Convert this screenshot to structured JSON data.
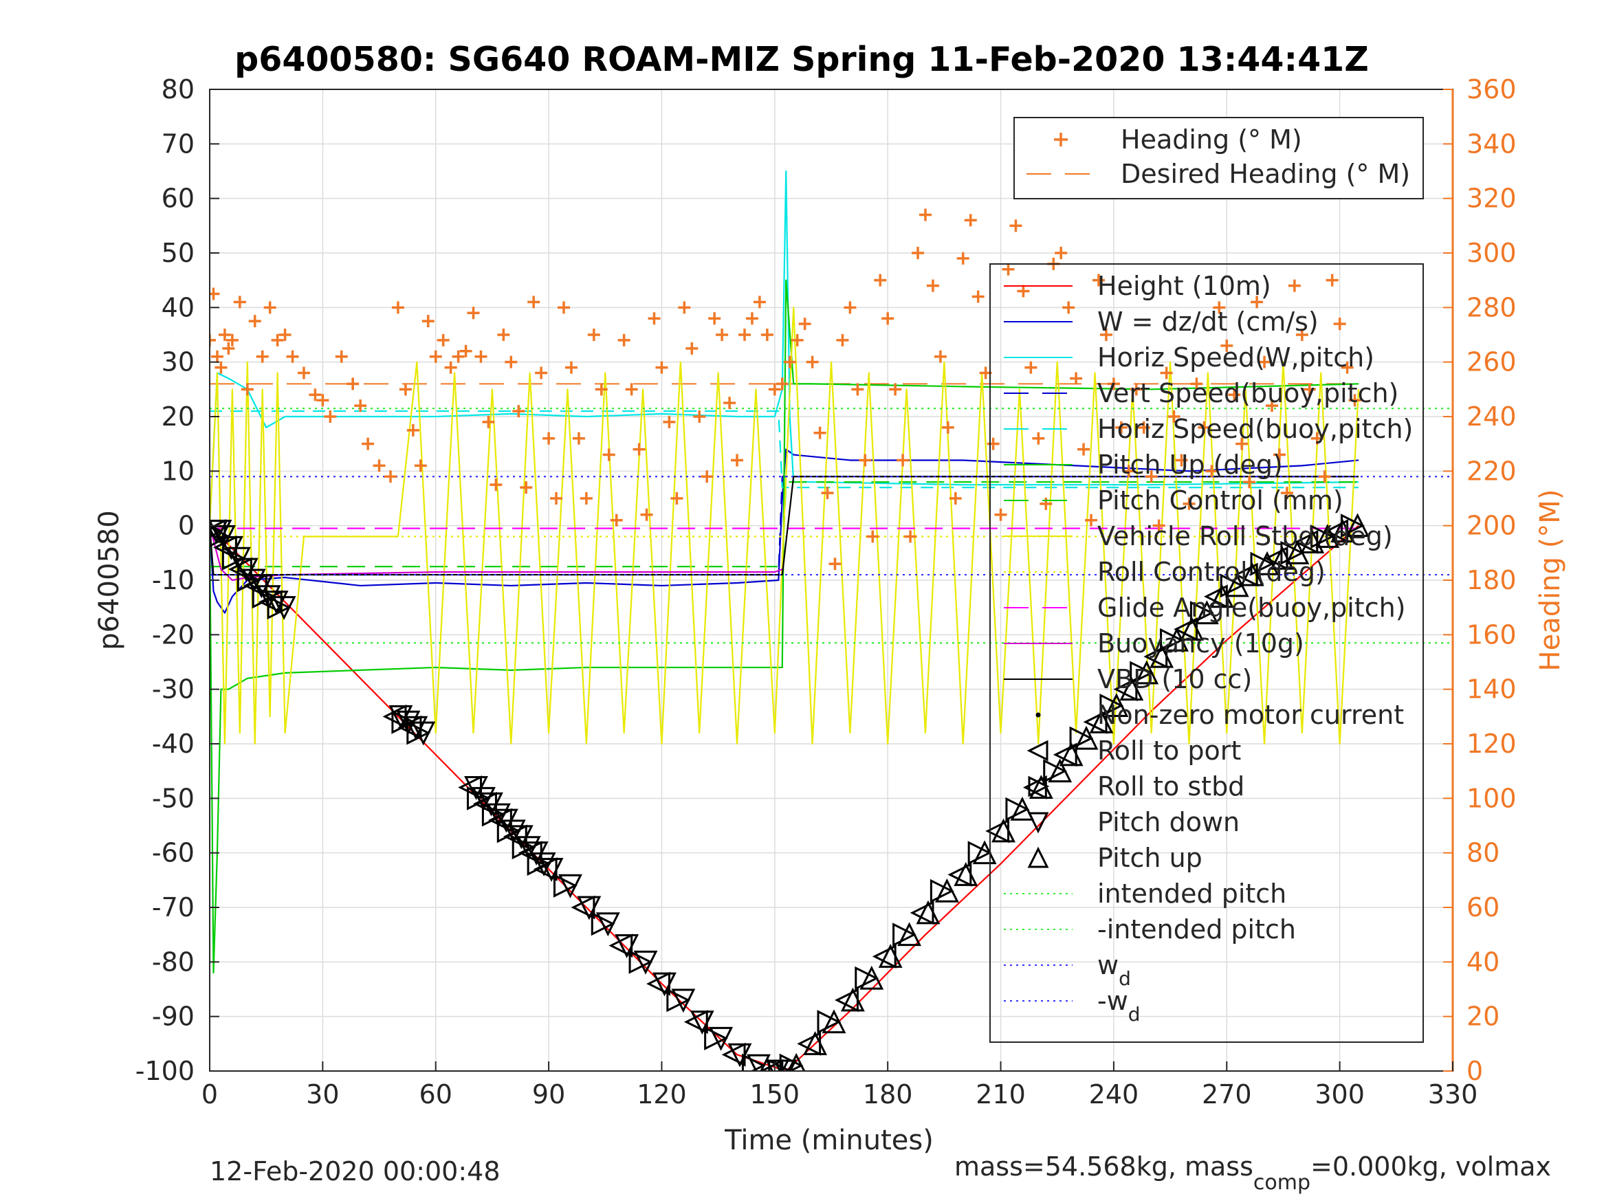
{
  "chart_data": {
    "type": "line",
    "title": "p6400580: SG640 ROAM-MIZ Spring 11-Feb-2020 13:44:41Z",
    "xlabel": "Time (minutes)",
    "ylabel": "p6400580",
    "y2label": "Heading (°M)",
    "xlim": [
      0,
      330
    ],
    "ylim": [
      -100,
      80
    ],
    "y2lim": [
      0,
      360
    ],
    "xticks": [
      "0",
      "30",
      "60",
      "90",
      "120",
      "150",
      "180",
      "210",
      "240",
      "270",
      "300",
      "330"
    ],
    "yticks": [
      "80",
      "70",
      "60",
      "50",
      "40",
      "30",
      "20",
      "10",
      "0",
      "-10",
      "-20",
      "-30",
      "-40",
      "-50",
      "-60",
      "-70",
      "-80",
      "-90",
      "-100"
    ],
    "y2ticks": [
      "360",
      "340",
      "320",
      "300",
      "280",
      "260",
      "240",
      "220",
      "200",
      "180",
      "160",
      "140",
      "120",
      "100",
      "80",
      "60",
      "40",
      "20",
      "0"
    ],
    "grid": true,
    "legend_upper": [
      {
        "label": "Heading (° M)",
        "color": "#f07826",
        "style": "plus"
      },
      {
        "label": "Desired Heading (° M)",
        "color": "#f07826",
        "style": "dashed"
      }
    ],
    "legend_lower": [
      {
        "label": "Height (10m)",
        "color": "#ff0000",
        "style": "solid"
      },
      {
        "label": "W = dz/dt (cm/s)",
        "color": "#0000d0",
        "style": "solid"
      },
      {
        "label": "Horiz Speed(W,pitch)",
        "color": "#00e5e5",
        "style": "solid"
      },
      {
        "label": "Vert Speed(buoy,pitch)",
        "color": "#0000d0",
        "style": "dashed"
      },
      {
        "label": "Horiz Speed(buoy,pitch)",
        "color": "#00e5e5",
        "style": "dashed"
      },
      {
        "label": "Pitch Up (deg)",
        "color": "#00cc00",
        "style": "solid"
      },
      {
        "label": "Pitch Control (mm)",
        "color": "#00cc00",
        "style": "dashed"
      },
      {
        "label": "Vehicle Roll Stbd (deg)",
        "color": "#e8e800",
        "style": "solid"
      },
      {
        "label": "Roll Control (deg)",
        "color": "#e8e800",
        "style": "dotted"
      },
      {
        "label": "Glide Angle(buoy,pitch)",
        "color": "#ff00ff",
        "style": "dashed"
      },
      {
        "label": "Buoyancy (10g)",
        "color": "#d000d0",
        "style": "solid"
      },
      {
        "label": "VBD (10 cc)",
        "color": "#000000",
        "style": "solid"
      },
      {
        "label": "Non-zero motor current",
        "color": "#000000",
        "style": "dot"
      },
      {
        "label": "Roll to port",
        "color": "#000000",
        "style": "tri-left"
      },
      {
        "label": "Roll to stbd",
        "color": "#000000",
        "style": "tri-right"
      },
      {
        "label": "Pitch down",
        "color": "#000000",
        "style": "tri-down"
      },
      {
        "label": "Pitch up",
        "color": "#000000",
        "style": "tri-up"
      },
      {
        "label": "intended pitch",
        "color": "#33ee33",
        "style": "dotted"
      },
      {
        "label": "-intended pitch",
        "color": "#33ee33",
        "style": "dotted"
      },
      {
        "label": "w",
        "sub": "d",
        "color": "#3333ff",
        "style": "dotted"
      },
      {
        "label": "-w",
        "sub": "d",
        "color": "#3333ff",
        "style": "dotted"
      }
    ],
    "series": [
      {
        "name": "Height (10m)",
        "color": "#ff0000",
        "x": [
          0,
          10,
          20,
          40,
          60,
          80,
          100,
          120,
          140,
          153,
          170,
          190,
          210,
          230,
          250,
          270,
          290,
          305
        ],
        "y": [
          0,
          -7,
          -14,
          -28,
          -42,
          -56,
          -70,
          -84,
          -97,
          -100,
          -89,
          -75,
          -62,
          -48,
          -34,
          -21,
          -9,
          0
        ]
      },
      {
        "name": "W = dz/dt (cm/s)",
        "color": "#0000d0",
        "x": [
          0,
          1,
          2,
          4,
          6,
          10,
          20,
          40,
          60,
          80,
          100,
          120,
          140,
          151,
          152,
          153,
          155,
          170,
          200,
          230,
          260,
          290,
          305
        ],
        "y": [
          0,
          -12,
          -14,
          -16,
          -13,
          -10,
          -9.5,
          -11,
          -10.5,
          -11,
          -10.5,
          -11,
          -10.5,
          -10,
          5,
          14,
          13,
          12,
          12,
          11,
          10,
          11,
          12
        ]
      },
      {
        "name": "Horiz Speed(W,pitch)",
        "color": "#00e5e5",
        "x": [
          0,
          2,
          5,
          10,
          15,
          20,
          40,
          60,
          80,
          100,
          120,
          140,
          150,
          152,
          153,
          154,
          155,
          160,
          200,
          250,
          305
        ],
        "y": [
          0,
          28,
          27,
          25,
          18,
          20,
          20,
          20,
          20.5,
          20,
          20.5,
          20,
          20,
          25,
          65,
          20,
          8,
          8,
          7.5,
          7.5,
          8
        ]
      },
      {
        "name": "Vert Speed(buoy,pitch)",
        "color": "#0000d0",
        "dash": "18,12",
        "x": [
          0,
          150,
          151,
          152,
          305
        ],
        "y": [
          -9,
          -9,
          -9,
          9,
          9
        ]
      },
      {
        "name": "Horiz Speed(buoy,pitch)",
        "color": "#00e5e5",
        "dash": "18,12",
        "x": [
          0,
          150,
          151,
          152,
          305
        ],
        "y": [
          21,
          21,
          21,
          7,
          7
        ]
      },
      {
        "name": "Pitch Up (deg)",
        "color": "#00cc00",
        "x": [
          0,
          1,
          2,
          3,
          5,
          10,
          20,
          40,
          60,
          80,
          100,
          120,
          140,
          150,
          152,
          153,
          155,
          160,
          200,
          250,
          305
        ],
        "y": [
          0,
          -82,
          -60,
          -30,
          -30,
          -28,
          -27,
          -26.5,
          -26,
          -26.5,
          -26,
          -26,
          -26,
          -26,
          -26,
          45,
          26,
          26,
          25.5,
          25,
          26
        ]
      },
      {
        "name": "Pitch Control (mm)",
        "color": "#00cc00",
        "dash": "26,14",
        "x": [
          0,
          152,
          153,
          305
        ],
        "y": [
          -7.5,
          -7.5,
          8,
          8
        ]
      },
      {
        "name": "Vehicle Roll Stbd (deg)",
        "color": "#e8e800",
        "x": [
          0,
          2,
          4,
          6,
          8,
          10,
          12,
          14,
          16,
          18,
          20,
          25,
          30,
          35,
          40,
          45,
          50,
          55,
          60,
          65,
          70,
          75,
          80,
          85,
          90,
          95,
          100,
          105,
          110,
          115,
          120,
          125,
          130,
          135,
          140,
          145,
          150,
          155,
          160,
          165,
          170,
          175,
          180,
          185,
          190,
          195,
          200,
          205,
          210,
          215,
          220,
          225,
          230,
          235,
          240,
          245,
          250,
          255,
          260,
          265,
          270,
          275,
          280,
          285,
          290,
          295,
          300,
          305
        ],
        "y": [
          0,
          28,
          -40,
          25,
          -38,
          30,
          -40,
          25,
          -35,
          28,
          -38,
          -2,
          -2,
          -2,
          -2,
          -2,
          -2,
          30,
          -38,
          28,
          -38,
          25,
          -40,
          28,
          -38,
          25,
          -40,
          28,
          -38,
          25,
          -40,
          30,
          -38,
          28,
          -40,
          25,
          -38,
          40,
          -40,
          30,
          -38,
          28,
          -40,
          25,
          -38,
          30,
          -40,
          28,
          -38,
          25,
          -40,
          30,
          -38,
          28,
          -40,
          25,
          -38,
          30,
          -40,
          28,
          -38,
          25,
          -40,
          30,
          -38,
          28,
          -40,
          25
        ]
      },
      {
        "name": "Roll Control (deg)",
        "color": "#e8e800",
        "dash": "3,6",
        "x": [
          0,
          305
        ],
        "y": [
          -2,
          -2
        ]
      },
      {
        "name": "Glide Angle(buoy,pitch)",
        "color": "#ff00ff",
        "dash": "26,14",
        "x": [
          0,
          152,
          153,
          305
        ],
        "y": [
          -0.5,
          -0.5,
          -0.5,
          -0.5
        ]
      },
      {
        "name": "Buoyancy (10g)",
        "color": "#d000d0",
        "x": [
          0,
          3,
          6,
          10,
          20,
          60,
          100,
          140,
          150,
          152
        ],
        "y": [
          0,
          -8,
          -10,
          -9.5,
          -9,
          -8.5,
          -8.5,
          -8.5,
          -8.5,
          -8
        ]
      },
      {
        "name": "VBD (10 cc)",
        "color": "#000000",
        "x": [
          0,
          1,
          2,
          151,
          152,
          155,
          305
        ],
        "y": [
          0,
          -9,
          -9,
          -9,
          -9,
          9,
          9
        ]
      },
      {
        "name": "intended pitch",
        "color": "#33ee33",
        "dash": "3,6",
        "x": [
          0,
          330
        ],
        "y": [
          21.5,
          21.5
        ]
      },
      {
        "name": "-intended pitch",
        "color": "#33ee33",
        "dash": "3,6",
        "x": [
          0,
          330
        ],
        "y": [
          -21.5,
          -21.5
        ]
      },
      {
        "name": "w_d",
        "color": "#3333ff",
        "dash": "3,6",
        "x": [
          0,
          330
        ],
        "y": [
          9,
          9
        ]
      },
      {
        "name": "-w_d",
        "color": "#3333ff",
        "dash": "3,6",
        "x": [
          0,
          330
        ],
        "y": [
          -9,
          -9
        ]
      }
    ],
    "heading_series": {
      "name": "Heading (° M)",
      "color": "#f07826",
      "axis": "right",
      "x": [
        0,
        1,
        2,
        3,
        4,
        5,
        6,
        8,
        10,
        12,
        14,
        16,
        18,
        20,
        22,
        25,
        28,
        30,
        32,
        35,
        38,
        40,
        42,
        45,
        48,
        50,
        52,
        54,
        56,
        58,
        60,
        62,
        64,
        66,
        68,
        70,
        72,
        74,
        76,
        78,
        80,
        82,
        84,
        86,
        88,
        90,
        92,
        94,
        96,
        98,
        100,
        102,
        104,
        106,
        108,
        110,
        112,
        114,
        116,
        118,
        120,
        122,
        124,
        126,
        128,
        130,
        132,
        134,
        136,
        138,
        140,
        142,
        144,
        146,
        148,
        150,
        152,
        154,
        156,
        158,
        160,
        162,
        164,
        166,
        168,
        170,
        172,
        174,
        176,
        178,
        180,
        182,
        184,
        186,
        188,
        190,
        192,
        194,
        196,
        198,
        200,
        202,
        204,
        206,
        208,
        210,
        212,
        214,
        216,
        218,
        220,
        222,
        224,
        226,
        228,
        230,
        232,
        234,
        236,
        238,
        240,
        242,
        244,
        246,
        248,
        250,
        252,
        254,
        256,
        258,
        260,
        262,
        264,
        266,
        268,
        270,
        272,
        274,
        276,
        278,
        280,
        282,
        284,
        286,
        288,
        290,
        292,
        294,
        296,
        298,
        300,
        302,
        304
      ],
      "y": [
        268,
        285,
        262,
        258,
        270,
        265,
        268,
        282,
        250,
        275,
        262,
        280,
        268,
        270,
        262,
        256,
        248,
        246,
        240,
        262,
        252,
        244,
        230,
        222,
        218,
        280,
        250,
        235,
        222,
        275,
        262,
        268,
        258,
        262,
        264,
        278,
        262,
        238,
        215,
        270,
        260,
        242,
        214,
        282,
        256,
        232,
        210,
        280,
        258,
        232,
        210,
        270,
        250,
        226,
        202,
        268,
        250,
        228,
        204,
        276,
        258,
        238,
        210,
        280,
        265,
        240,
        218,
        276,
        270,
        245,
        224,
        270,
        276,
        282,
        270,
        250,
        252,
        260,
        268,
        274,
        260,
        234,
        212,
        186,
        268,
        280,
        250,
        224,
        196,
        290,
        276,
        250,
        224,
        196,
        300,
        314,
        288,
        262,
        236,
        210,
        298,
        312,
        284,
        256,
        230,
        204,
        294,
        310,
        286,
        258,
        232,
        208,
        296,
        300,
        280,
        254,
        228,
        202,
        290,
        270,
        252,
        236,
        220,
        250,
        236,
        218,
        200,
        256,
        240,
        224,
        208,
        252,
        236,
        220,
        280,
        266,
        248,
        230,
        216,
        282,
        260,
        244,
        226,
        212,
        288,
        270,
        250,
        232,
        218,
        290,
        274,
        258,
        246
      ]
    },
    "desired_heading": {
      "name": "Desired Heading (° M)",
      "color": "#f07826",
      "dash": "36,20",
      "axis": "right",
      "x": [
        0,
        153,
        154,
        305
      ],
      "y": [
        252,
        252,
        252,
        252
      ]
    },
    "markers": {
      "descent": {
        "x": [
          1,
          2,
          3,
          5,
          7,
          9,
          11,
          13,
          15,
          17,
          19,
          50,
          52,
          54,
          56,
          70,
          72,
          74,
          76,
          78,
          80,
          82,
          84,
          86,
          88,
          90,
          95,
          100,
          105,
          110,
          115,
          120,
          125,
          130,
          135,
          140,
          145,
          150,
          152
        ],
        "y": [
          -1,
          -1,
          -2,
          -4,
          -6,
          -8,
          -10,
          -11,
          -13,
          -14,
          -15,
          -35,
          -36,
          -37,
          -38,
          -48,
          -50,
          -51,
          -53,
          -54,
          -56,
          -57,
          -59,
          -60,
          -62,
          -63,
          -66,
          -70,
          -73,
          -77,
          -80,
          -84,
          -87,
          -91,
          -94,
          -97,
          -99,
          -100,
          -100
        ]
      },
      "ascent": {
        "x": [
          155,
          160,
          165,
          170,
          175,
          180,
          185,
          190,
          195,
          200,
          205,
          210,
          215,
          220,
          225,
          228,
          232,
          236,
          240,
          244,
          248,
          252,
          256,
          260,
          264,
          268,
          272,
          276,
          280,
          284,
          288,
          292,
          296,
          300,
          304
        ],
        "y": [
          -99,
          -95,
          -91,
          -87,
          -83,
          -79,
          -75,
          -71,
          -67,
          -64,
          -60,
          -56,
          -52,
          -48,
          -45,
          -42,
          -39,
          -36,
          -33,
          -30,
          -27,
          -24,
          -21,
          -19,
          -16,
          -13,
          -11,
          -9,
          -7,
          -6,
          -5,
          -3,
          -2,
          -1,
          0
        ]
      }
    }
  },
  "footer": {
    "left": "12-Feb-2020 00:00:48",
    "right_main": "mass=54.568kg, mass",
    "right_sub": "comp",
    "right_tail": "=0.000kg, volmax"
  }
}
